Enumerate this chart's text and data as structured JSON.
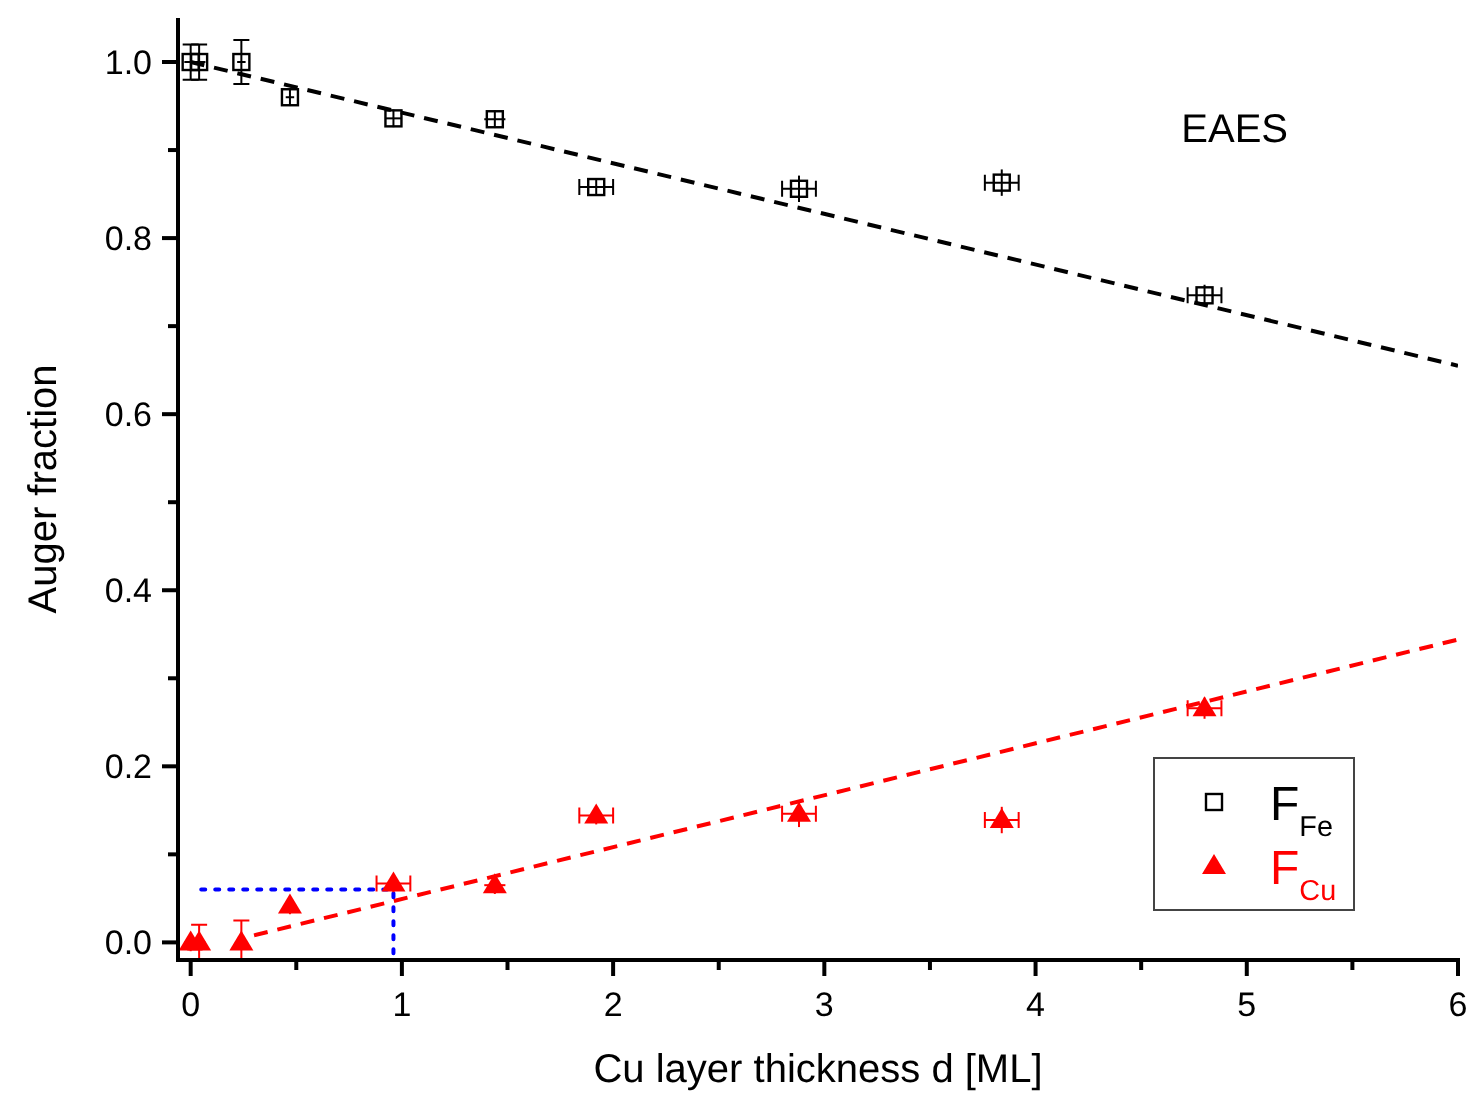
{
  "chart_data": {
    "type": "scatter",
    "xlabel": "Cu layer thickness d [ML]",
    "ylabel": "Auger fraction",
    "xlim": [
      -0.06,
      6
    ],
    "ylim": [
      -0.02,
      1.05
    ],
    "xticks": [
      0,
      1,
      2,
      3,
      4,
      5,
      6
    ],
    "yticks": [
      {
        "value": 0,
        "label": "0.0"
      },
      {
        "value": 0.2,
        "label": "0.2"
      },
      {
        "value": 0.4,
        "label": "0.4"
      },
      {
        "value": 0.6,
        "label": "0.6"
      },
      {
        "value": 0.8,
        "label": "0.8"
      },
      {
        "value": 1,
        "label": "1.0"
      }
    ],
    "grid": false,
    "legend": "bottom right",
    "annotations": [
      "EAES"
    ],
    "series": [
      {
        "name": "F$_{Fe}$",
        "color": "#000000",
        "type": "scatter",
        "marker": "square",
        "x": [
          0,
          0.04,
          0.24,
          0.47,
          0.96,
          1.44,
          1.92,
          2.88,
          3.84,
          4.8
        ],
        "values": [
          1.0,
          1.0,
          1.0,
          0.96,
          0.936,
          0.935,
          0.858,
          0.856,
          0.863,
          0.735
        ],
        "errors": [
          0.02,
          0.02,
          0.025,
          0.01,
          0.01,
          0.01,
          0.01,
          0.015,
          0.015,
          0.012
        ],
        "xerrors": [
          0.03,
          0.03,
          0.02,
          0.02,
          0.04,
          0.05,
          0.08,
          0.08,
          0.08,
          0.08
        ]
      },
      {
        "name": "F$_{Cu}$",
        "color": "#ff0000",
        "type": "scatter",
        "marker": "triangle",
        "x": [
          0,
          0.04,
          0.24,
          0.47,
          0.96,
          1.44,
          1.92,
          2.88,
          3.84,
          4.8
        ],
        "values": [
          0.0,
          0.0,
          0.0,
          0.042,
          0.067,
          0.065,
          0.144,
          0.146,
          0.139,
          0.266
        ],
        "errors": [
          0.01,
          0.02,
          0.025,
          0.01,
          0.01,
          0.01,
          0.01,
          0.015,
          0.015,
          0.012
        ],
        "xerrors": [
          0.03,
          0.03,
          0.02,
          0.02,
          0.08,
          0.05,
          0.08,
          0.08,
          0.08,
          0.08
        ]
      },
      {
        "color": "#000000",
        "type": "line",
        "line_style": "dashed",
        "x": [
          0,
          6
        ],
        "values": [
          1.0,
          0.655
        ]
      },
      {
        "color": "#ff0000",
        "type": "line",
        "line_style": "dashed",
        "x": [
          0.3,
          6
        ],
        "values": [
          0.008,
          0.344
        ]
      },
      {
        "color": "#0000ff",
        "type": "line",
        "line_style": "dotted",
        "x": [
          0.05,
          0.96,
          0.96
        ],
        "values": [
          0.06,
          0.06,
          -0.02
        ]
      }
    ]
  }
}
